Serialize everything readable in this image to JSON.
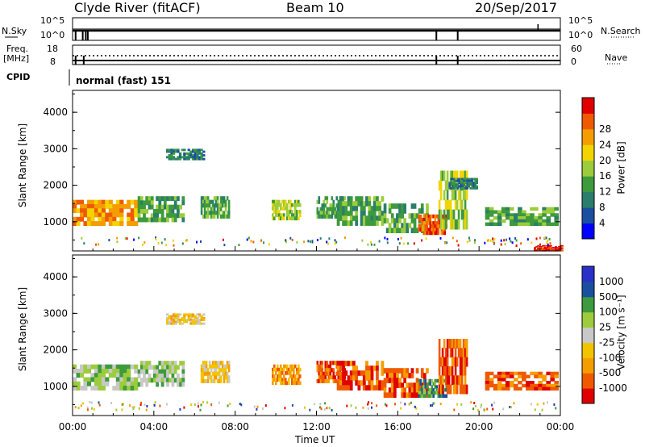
{
  "header": {
    "station": "Clyde River (fitACF)",
    "beam": "Beam 10",
    "date": "20/Sep/2017"
  },
  "status_panels": {
    "nsky_label": "N.Sky",
    "nsky_top": "10^5",
    "nsky_bottom": "10^0",
    "nsearch_label": "N.Search",
    "nsearch_top": "10^5",
    "nsearch_bottom": "10^0",
    "freq_label": "Freq.",
    "freq_unit": "[MHz]",
    "freq_top": "18",
    "freq_bottom": "8",
    "nave_label": "Nave",
    "nave_top": "60",
    "nave_bottom": "0",
    "cpid_label": "CPID",
    "cpid_value": "normal (fast) 151"
  },
  "colors": {
    "power_scale": [
      "#0000ff",
      "#1a4fa0",
      "#2a7e6b",
      "#3d9a3d",
      "#9ccc3c",
      "#f2d400",
      "#f59d00",
      "#ef5a00",
      "#e00000"
    ],
    "velocity_scale": [
      "#e00000",
      "#ef5a00",
      "#f59d00",
      "#f2c400",
      "#c8c8c8",
      "#9ccc3c",
      "#3d9a3d",
      "#1a4fa0",
      "#2a2fc8"
    ]
  },
  "chart_data": [
    {
      "type": "heatmap",
      "name": "power",
      "ylabel": "Slant Range [km]",
      "ylim": [
        200,
        4600
      ],
      "yticks": [
        "1000",
        "2000",
        "3000",
        "4000"
      ],
      "colorbar_label": "Power [dB]",
      "colorbar_ticks": [
        "4",
        "8",
        "12",
        "16",
        "20",
        "24",
        "28"
      ],
      "bands": [
        {
          "t0": 0.0,
          "t1": 3.2,
          "r0": 900,
          "r1": 1600,
          "level": 6
        },
        {
          "t0": 3.2,
          "t1": 5.5,
          "r0": 1000,
          "r1": 1700,
          "level": 3
        },
        {
          "t0": 6.3,
          "t1": 6.8,
          "r0": 1100,
          "r1": 1700,
          "level": 3
        },
        {
          "t0": 9.8,
          "t1": 10.8,
          "r0": 1050,
          "r1": 1600,
          "level": 4
        },
        {
          "t0": 12.0,
          "t1": 12.8,
          "r0": 1100,
          "r1": 1700,
          "level": 3
        },
        {
          "t0": 13.0,
          "t1": 15.3,
          "r0": 900,
          "r1": 1700,
          "level": 3
        },
        {
          "t0": 15.3,
          "t1": 17.5,
          "r0": 700,
          "r1": 1500,
          "level": 3
        },
        {
          "t0": 17.0,
          "t1": 17.8,
          "r0": 650,
          "r1": 1200,
          "level": 7
        },
        {
          "t0": 18.0,
          "t1": 18.4,
          "r0": 800,
          "r1": 2400,
          "level": 4
        },
        {
          "t0": 20.3,
          "t1": 23.9,
          "r0": 900,
          "r1": 1400,
          "level": 3
        },
        {
          "t0": 22.7,
          "t1": 23.5,
          "r0": 200,
          "r1": 360,
          "level": 8
        },
        {
          "t0": 4.6,
          "t1": 6.5,
          "r0": 2700,
          "r1": 3000,
          "level": 2
        },
        {
          "t0": 18.5,
          "t1": 19.2,
          "r0": 1900,
          "r1": 2200,
          "level": 2
        }
      ]
    },
    {
      "type": "heatmap",
      "name": "velocity",
      "ylabel": "Slant Range [km]",
      "ylim": [
        200,
        4600
      ],
      "yticks": [
        "1000",
        "2000",
        "3000",
        "4000"
      ],
      "colorbar_label": "Velocity [m s⁻¹]",
      "colorbar_ticks": [
        "-1000",
        "-500",
        "-100",
        "-25",
        "25",
        "100",
        "500",
        "1000"
      ],
      "bands": [
        {
          "t0": 0.0,
          "t1": 3.2,
          "r0": 900,
          "r1": 1600,
          "level": 5
        },
        {
          "t0": 3.2,
          "t1": 5.5,
          "r0": 1000,
          "r1": 1700,
          "level": 5
        },
        {
          "t0": 6.3,
          "t1": 6.8,
          "r0": 1100,
          "r1": 1700,
          "level": 3
        },
        {
          "t0": 9.8,
          "t1": 10.8,
          "r0": 1050,
          "r1": 1600,
          "level": 2
        },
        {
          "t0": 12.0,
          "t1": 12.8,
          "r0": 1100,
          "r1": 1700,
          "level": 1
        },
        {
          "t0": 13.0,
          "t1": 15.3,
          "r0": 900,
          "r1": 1700,
          "level": 1
        },
        {
          "t0": 15.3,
          "t1": 17.5,
          "r0": 700,
          "r1": 1500,
          "level": 1
        },
        {
          "t0": 17.0,
          "t1": 17.8,
          "r0": 700,
          "r1": 1200,
          "level": 6
        },
        {
          "t0": 18.0,
          "t1": 19.0,
          "r0": 800,
          "r1": 2300,
          "level": 1
        },
        {
          "t0": 20.3,
          "t1": 23.9,
          "r0": 900,
          "r1": 1400,
          "level": 1
        },
        {
          "t0": 4.6,
          "t1": 6.5,
          "r0": 2700,
          "r1": 3000,
          "level": 3
        }
      ]
    }
  ],
  "x_axis": {
    "label": "Time UT",
    "ticks": [
      "00:00",
      "04:00",
      "08:00",
      "12:00",
      "16:00",
      "20:00",
      "00:00"
    ],
    "range_hours": [
      0,
      24
    ]
  }
}
